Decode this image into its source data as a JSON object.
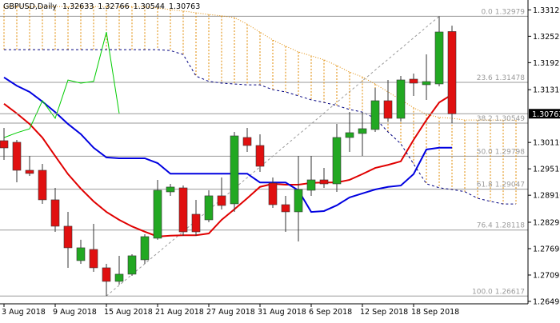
{
  "chart_data": {
    "type": "candlestick",
    "symbol": "GBPUSD,Daily",
    "categories": [
      "3 Aug 2018",
      null,
      null,
      null,
      "9 Aug 2018",
      null,
      null,
      null,
      "15 Aug 2018",
      null,
      null,
      null,
      "21 Aug 2018",
      null,
      null,
      null,
      "27 Aug 2018",
      null,
      null,
      null,
      "31 Aug 2018",
      null,
      null,
      null,
      "6 Sep 2018",
      null,
      null,
      null,
      "12 Sep 2018",
      null,
      null,
      null,
      "18 Sep 2018",
      null,
      null,
      null,
      null,
      null,
      null,
      null,
      null
    ],
    "open": [
      1.3015,
      1.30114,
      1.29477,
      1.29477,
      1.28805,
      1.28205,
      1.27423,
      1.27677,
      1.27259,
      1.2695,
      1.27114,
      1.27441,
      1.27932,
      1.28986,
      1.29077,
      1.28477,
      1.2835,
      1.28896,
      1.28714,
      1.30223,
      1.30041,
      1.29186,
      1.28695,
      1.28532,
      1.29023,
      1.29259,
      1.29168,
      1.30223,
      1.30314,
      1.30405,
      1.31059,
      1.30659,
      1.3155,
      1.31423,
      1.31441,
      1.32633,
      null,
      null,
      null,
      null,
      null
    ],
    "high": [
      1.30441,
      1.30168,
      1.29805,
      1.29623,
      1.29077,
      1.28532,
      1.27896,
      1.28259,
      1.2735,
      1.27532,
      1.27568,
      1.28023,
      1.29259,
      1.29168,
      1.29132,
      1.28805,
      1.29023,
      1.29314,
      1.3035,
      1.30441,
      1.30295,
      1.29314,
      1.28896,
      1.29805,
      1.29805,
      1.29532,
      1.30532,
      1.30805,
      1.30805,
      1.3135,
      1.31532,
      1.31623,
      1.31677,
      1.32114,
      1.32979,
      1.32766,
      null,
      null,
      null,
      null,
      null
    ],
    "low": [
      1.29714,
      1.29205,
      1.2935,
      1.28714,
      1.28077,
      1.27259,
      1.2735,
      1.27168,
      1.26617,
      1.26877,
      1.27077,
      1.2735,
      1.27896,
      1.28896,
      1.27986,
      1.27986,
      1.28296,
      1.28586,
      1.28532,
      1.29896,
      1.29441,
      1.28623,
      1.28077,
      1.27859,
      1.28896,
      1.29077,
      1.28986,
      1.29896,
      1.29805,
      1.3035,
      1.30586,
      1.30586,
      1.31168,
      1.31077,
      1.31386,
      1.30544,
      null,
      null,
      null,
      null,
      null
    ],
    "close": [
      1.29986,
      1.29477,
      1.29405,
      1.28805,
      1.28205,
      1.27714,
      1.27714,
      1.27259,
      1.2695,
      1.27114,
      1.27532,
      1.27968,
      1.29023,
      1.29096,
      1.28077,
      1.28077,
      1.28896,
      1.28677,
      1.30259,
      1.30041,
      1.29568,
      1.28695,
      1.28532,
      1.29041,
      1.29259,
      1.29168,
      1.30223,
      1.30332,
      1.30423,
      1.31059,
      1.30659,
      1.31532,
      1.31459,
      1.31495,
      1.32623,
      1.30763,
      null,
      null,
      null,
      null,
      null
    ],
    "up_color": "#22a822",
    "down_color": "#e01010",
    "wick_color": "#333333",
    "series": [
      {
        "color": "#e00000",
        "style": "solid",
        "width": 2,
        "values": [
          1.3099,
          1.3077,
          1.3053,
          1.3022,
          1.298,
          1.2939,
          1.2906,
          1.2877,
          1.2853,
          1.2835,
          1.282,
          1.2808,
          1.2797,
          1.2799,
          1.28,
          1.28,
          1.2804,
          1.2835,
          1.2859,
          1.2884,
          1.291,
          1.2917,
          1.2915,
          1.2915,
          1.2919,
          1.292,
          1.292,
          1.2926,
          1.2939,
          1.2953,
          1.296,
          1.2968,
          1.3017,
          1.3062,
          1.3102,
          1.312,
          null,
          null,
          null,
          null,
          null
        ]
      },
      {
        "color": "#0000e0",
        "style": "solid",
        "width": 2,
        "values": [
          1.3159,
          1.314,
          1.3126,
          1.3104,
          1.308,
          1.3053,
          1.303,
          1.2999,
          1.2977,
          1.2975,
          1.2975,
          1.2975,
          1.2964,
          1.294,
          1.294,
          1.294,
          1.294,
          1.294,
          1.294,
          1.294,
          1.292,
          1.292,
          1.292,
          1.2902,
          1.2853,
          1.2855,
          1.2868,
          1.2886,
          1.2895,
          1.2904,
          1.291,
          1.2913,
          1.2939,
          1.2995,
          1.2999,
          1.2999,
          null,
          null,
          null,
          null,
          null
        ]
      },
      {
        "color": "#00cc00",
        "style": "solid",
        "width": 1,
        "values": [
          1.3022,
          1.3033,
          1.3042,
          1.3106,
          1.3066,
          1.3153,
          1.3146,
          1.315,
          1.3262,
          1.3077,
          null,
          null,
          null,
          null,
          null,
          null,
          null,
          null,
          null,
          null,
          null,
          null,
          null,
          null,
          null,
          null,
          null,
          null,
          null,
          null,
          null,
          null,
          null,
          null,
          null,
          null,
          null,
          null,
          null,
          null,
          null
        ]
      },
      {
        "color": "#e08a00",
        "style": "dotted",
        "width": 1,
        "cloud_edge": true,
        "values": [
          1.332,
          1.332,
          1.332,
          1.332,
          1.332,
          1.332,
          1.332,
          1.332,
          1.332,
          1.332,
          1.332,
          1.332,
          1.3317,
          1.3313,
          1.331,
          1.3306,
          1.3302,
          1.3299,
          1.3295,
          1.328,
          1.3262,
          1.3244,
          1.323,
          1.3217,
          1.3208,
          1.3199,
          1.3186,
          1.3171,
          1.316,
          1.3144,
          1.3126,
          1.3108,
          1.309,
          1.3075,
          1.3068,
          1.3066,
          1.3062,
          1.3062,
          1.3062,
          1.3062,
          1.3062
        ]
      },
      {
        "color": "#000080",
        "style": "dashed",
        "width": 1,
        "cloud_edge": true,
        "values": [
          1.3222,
          1.3222,
          1.3222,
          1.3222,
          1.3222,
          1.3222,
          1.3222,
          1.3222,
          1.3222,
          1.3222,
          1.3222,
          1.3222,
          1.3222,
          1.322,
          1.3211,
          1.3162,
          1.315,
          1.3146,
          1.3144,
          1.3142,
          1.3142,
          1.3131,
          1.3126,
          1.3117,
          1.3108,
          1.3102,
          1.3095,
          1.3086,
          1.308,
          1.3066,
          1.3035,
          1.3008,
          1.2962,
          1.2917,
          1.2908,
          1.2904,
          1.2899,
          1.2884,
          1.2877,
          1.2871,
          1.2871
        ]
      }
    ],
    "cloud_color": "#e08a00",
    "fibonacci": {
      "color": "#9a9a9a",
      "levels": [
        {
          "ratio": "0.0",
          "price": 1.32979
        },
        {
          "ratio": "23.6",
          "price": 1.31478
        },
        {
          "ratio": "38.2",
          "price": 1.30549
        },
        {
          "ratio": "50.0",
          "price": 1.29798
        },
        {
          "ratio": "61.8",
          "price": 1.29047
        },
        {
          "ratio": "76.4",
          "price": 1.28118
        },
        {
          "ratio": "100.0",
          "price": 1.26617
        }
      ]
    },
    "ylim": [
      1.2644,
      1.3335
    ],
    "yticks": [
      1.33125,
      1.32525,
      1.31925,
      {
        "value": 1.3131,
        "label": "1.31310"
      },
      {
        "value": 1.3011,
        "label": "1.30110"
      },
      {
        "value": 1.2951,
        "label": "1.29510"
      },
      {
        "value": 1.2891,
        "label": "1.28910"
      },
      1.28295,
      1.27695,
      1.27095,
      1.26495
    ]
  }
}
